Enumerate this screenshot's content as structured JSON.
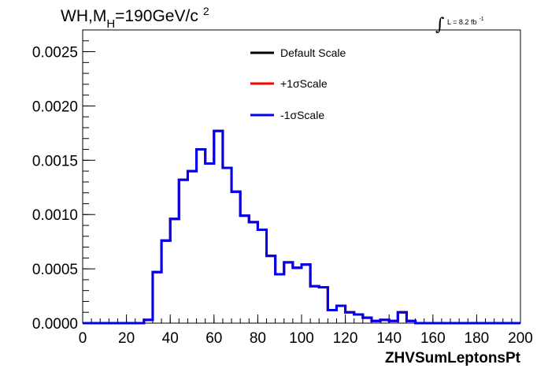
{
  "chart_data": {
    "type": "histogram-step",
    "title_main": "WH,M",
    "title_sub": "H",
    "title_rest": "=190GeV/c",
    "title_sup": "2",
    "lumi_label": "L = 8.2 fb",
    "lumi_sup": "-1",
    "xlabel": "ZHVSumLeptonsPt",
    "xlim": [
      0,
      200
    ],
    "ylim": [
      0,
      0.0027
    ],
    "xticks": [
      0,
      20,
      40,
      60,
      80,
      100,
      120,
      140,
      160,
      180,
      200
    ],
    "xtick_labels": [
      "0",
      "20",
      "40",
      "60",
      "80",
      "100",
      "120",
      "140",
      "160",
      "180",
      "200"
    ],
    "yticks": [
      0,
      0.0005,
      0.001,
      0.0015,
      0.002,
      0.0025
    ],
    "ytick_labels": [
      "0.0000",
      "0.0005",
      "0.0010",
      "0.0015",
      "0.0020",
      "0.0025"
    ],
    "bin_width": 4,
    "bin_edges_start": 0,
    "series": [
      {
        "name": "Default Scale",
        "color": "#000000",
        "values": [
          0,
          0,
          0,
          0,
          0,
          0,
          0,
          3e-05,
          0.00047,
          0.00076,
          0.00096,
          0.00132,
          0.0014,
          0.0016,
          0.00147,
          0.00177,
          0.00143,
          0.00121,
          0.00099,
          0.00093,
          0.00086,
          0.00062,
          0.00045,
          0.00056,
          0.00051,
          0.00054,
          0.00034,
          0.00033,
          0.00012,
          0.00016,
          0.0001,
          8e-05,
          5e-05,
          2e-05,
          3e-05,
          2e-05,
          0.0001,
          2e-05,
          0,
          0,
          0,
          0,
          0,
          0,
          0,
          0,
          0,
          0,
          0,
          0
        ]
      },
      {
        "name": "+1σScale",
        "color": "#ff0000",
        "values": [
          0,
          0,
          0,
          0,
          0,
          0,
          0,
          3e-05,
          0.00047,
          0.00076,
          0.00096,
          0.00132,
          0.0014,
          0.0016,
          0.00147,
          0.00177,
          0.00143,
          0.00121,
          0.00099,
          0.00093,
          0.00086,
          0.00062,
          0.00045,
          0.00056,
          0.00051,
          0.00054,
          0.00034,
          0.00033,
          0.00012,
          0.00016,
          0.0001,
          8e-05,
          5e-05,
          2e-05,
          3e-05,
          2e-05,
          0.0001,
          2e-05,
          0,
          0,
          0,
          0,
          0,
          0,
          0,
          0,
          0,
          0,
          0,
          0
        ]
      },
      {
        "name": "-1σScale",
        "color": "#0000ee",
        "values": [
          0,
          0,
          0,
          0,
          0,
          0,
          0,
          3e-05,
          0.00047,
          0.00076,
          0.00096,
          0.00132,
          0.0014,
          0.0016,
          0.00147,
          0.00177,
          0.00143,
          0.00121,
          0.00099,
          0.00093,
          0.00086,
          0.00062,
          0.00045,
          0.00056,
          0.00051,
          0.00054,
          0.00034,
          0.00033,
          0.00012,
          0.00016,
          0.0001,
          8e-05,
          5e-05,
          2e-05,
          3e-05,
          2e-05,
          0.0001,
          2e-05,
          0,
          0,
          0,
          0,
          0,
          0,
          0,
          0,
          0,
          0,
          0,
          0
        ]
      }
    ],
    "legend_position": "top-center",
    "grid": false
  }
}
